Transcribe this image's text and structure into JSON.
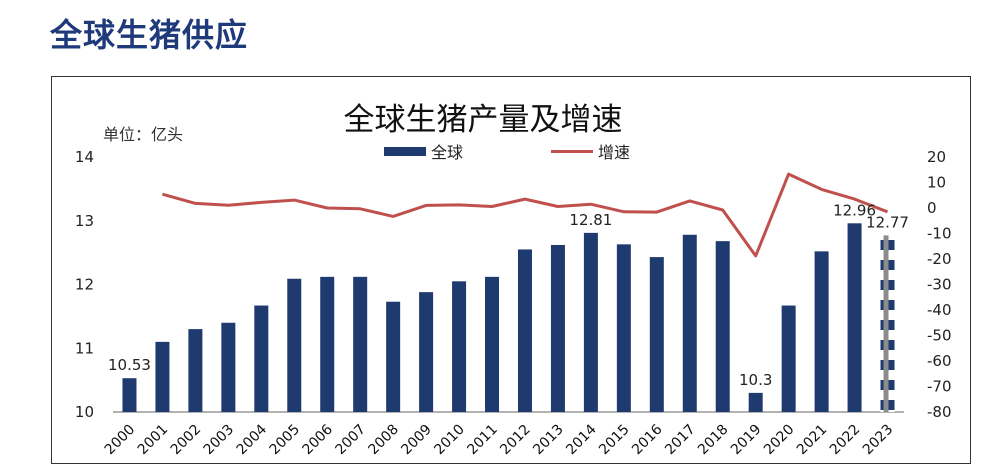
{
  "page": {
    "heading": "全球生猪供应"
  },
  "chart_data": {
    "type": "bar+line",
    "title": "全球生猪产量及增速",
    "unit_label": "单位：亿头",
    "legend": [
      {
        "name": "全球",
        "kind": "bar",
        "color": "#1f3a6e"
      },
      {
        "name": "增速",
        "kind": "line",
        "color": "#c0504d"
      }
    ],
    "categories": [
      "2000",
      "2001",
      "2002",
      "2003",
      "2004",
      "2005",
      "2006",
      "2007",
      "2008",
      "2009",
      "2010",
      "2011",
      "2012",
      "2013",
      "2014",
      "2015",
      "2016",
      "2017",
      "2018",
      "2019",
      "2020",
      "2021",
      "2022",
      "2023"
    ],
    "series": [
      {
        "name": "全球",
        "type": "bar",
        "axis": "left",
        "values": [
          10.53,
          11.1,
          11.3,
          11.4,
          11.67,
          12.09,
          12.12,
          12.12,
          11.73,
          11.88,
          12.05,
          12.12,
          12.55,
          12.62,
          12.81,
          12.63,
          12.43,
          12.78,
          12.68,
          10.3,
          11.67,
          12.52,
          12.96,
          12.77
        ]
      },
      {
        "name": "增速",
        "type": "line",
        "axis": "right",
        "values": [
          null,
          5.4,
          1.8,
          1.1,
          2.2,
          3.1,
          0,
          -0.3,
          -3.3,
          1,
          1.2,
          0.6,
          3.5,
          0.6,
          1.5,
          -1.5,
          -1.6,
          2.8,
          -0.8,
          -18.8,
          13.3,
          7.3,
          3.5,
          -1.5
        ]
      }
    ],
    "y_left": {
      "min": 10,
      "max": 14,
      "ticks": [
        "14",
        "13",
        "12",
        "11",
        "10"
      ]
    },
    "y_right": {
      "min": -80,
      "max": 20,
      "ticks": [
        "20",
        "10",
        "0",
        "-10",
        "-20",
        "-30",
        "-40",
        "-50",
        "-60",
        "-70",
        "-80"
      ]
    },
    "data_labels": [
      {
        "index": 0,
        "text": "10.53"
      },
      {
        "index": 14,
        "text": "12.81"
      },
      {
        "index": 19,
        "text": "10.3"
      },
      {
        "index": 22,
        "text": "12.96"
      },
      {
        "index": 23,
        "text": "12.77"
      }
    ],
    "grid": false,
    "legend_position": "top-center"
  }
}
